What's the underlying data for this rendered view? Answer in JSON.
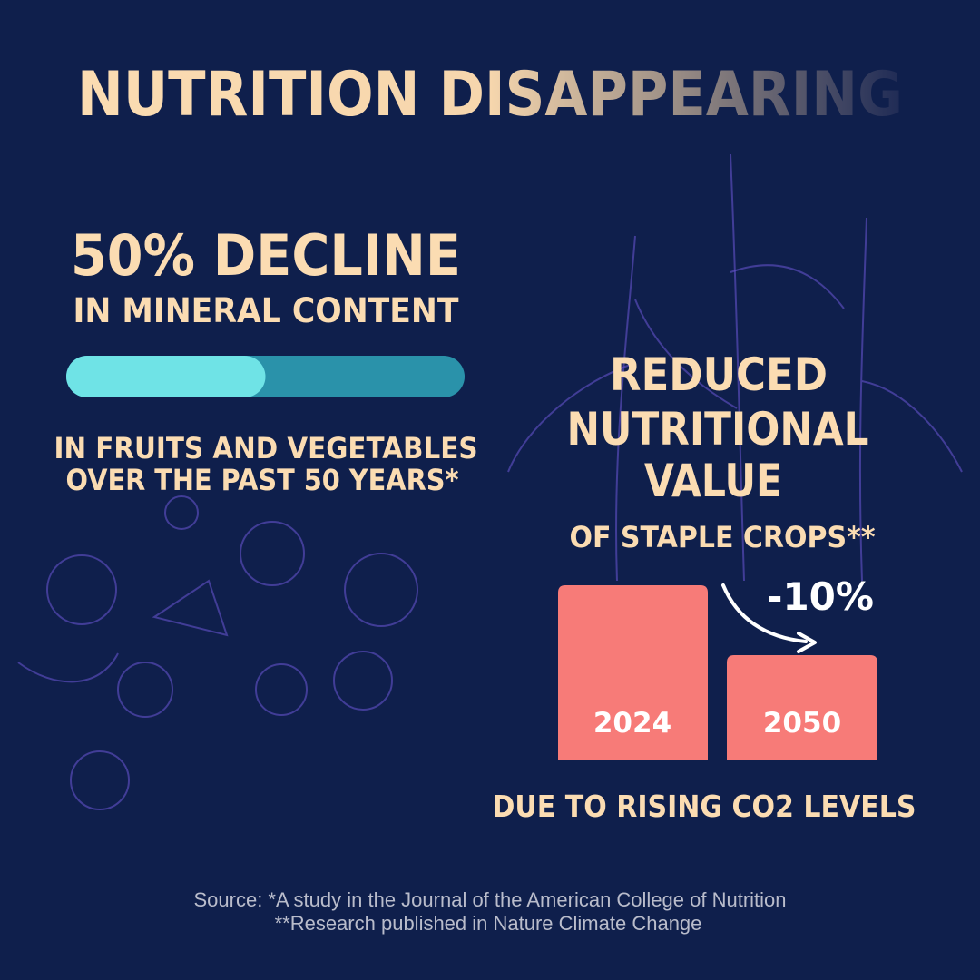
{
  "header": {
    "title": "NUTRITION DISAPPEARING"
  },
  "minerals": {
    "headline": "50% DECLINE",
    "subhead": "IN MINERAL CONTENT",
    "bar_value": 50,
    "detail": [
      "IN FRUITS AND VEGETABLES",
      "OVER THE PAST 50 YEARS*"
    ]
  },
  "crops": {
    "headline": [
      "REDUCED",
      "NUTRITIONAL",
      "VALUE"
    ],
    "subhead": "OF STAPLE CROPS**",
    "bars": [
      "2024",
      "2050"
    ],
    "change": "-10%",
    "cause": "DUE TO RISING CO2 LEVELS"
  },
  "footer": {
    "sources": [
      "Source: *A study in the Journal of the American College of Nutrition",
      "**Research published in Nature Climate Change"
    ]
  }
}
